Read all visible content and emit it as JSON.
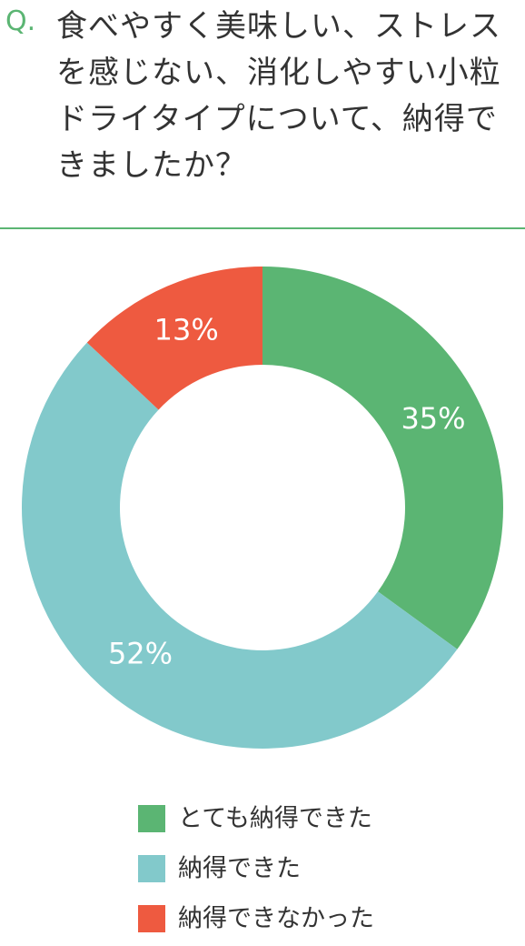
{
  "chart_data": {
    "type": "donut",
    "question_label": "Q.",
    "title": "食べやすく美味しい、ストレスを感じない、消化しやすい小粒ドライタイプについて、納得できましたか？",
    "categories": [
      "とても納得できた",
      "納得できた",
      "納得できなかった"
    ],
    "values": [
      35,
      52,
      13
    ],
    "value_labels": [
      "35%",
      "52%",
      "13%"
    ],
    "colors": [
      "#5bb573",
      "#82c9cb",
      "#ee5a40"
    ]
  }
}
